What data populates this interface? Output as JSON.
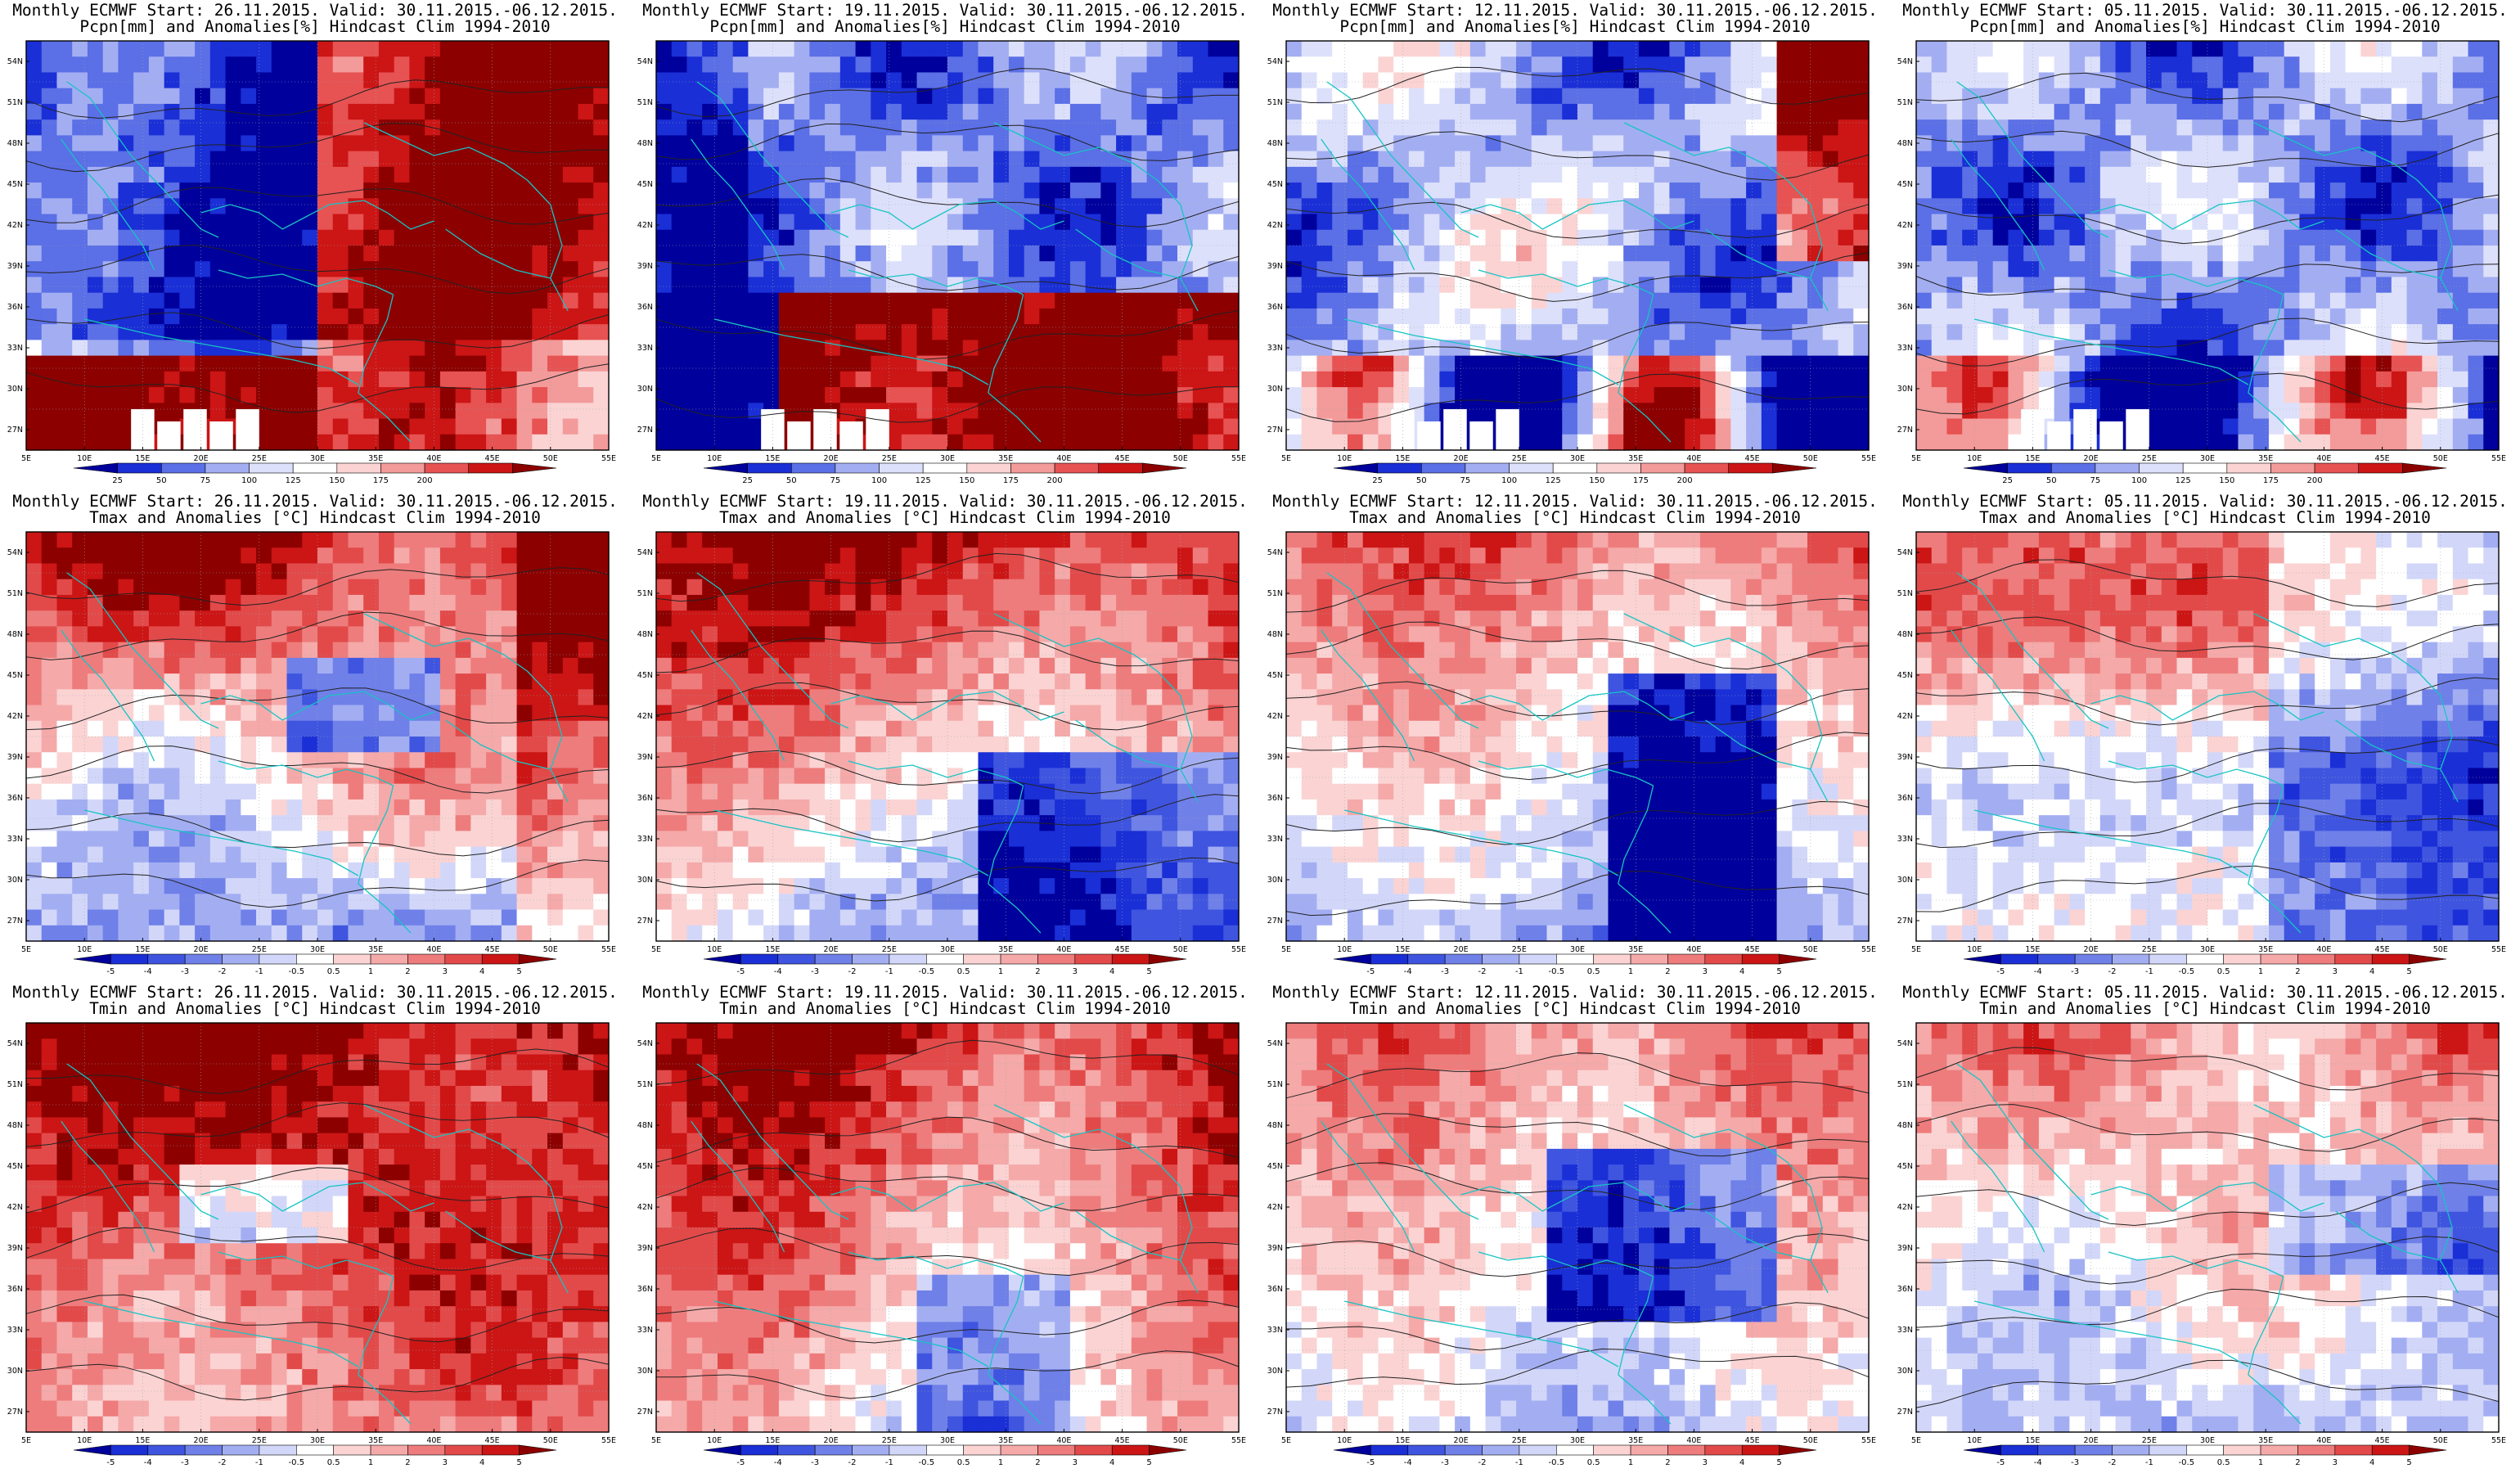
{
  "figure": {
    "lat_labels": [
      "54N",
      "51N",
      "48N",
      "45N",
      "42N",
      "39N",
      "36N",
      "33N",
      "30N",
      "27N"
    ],
    "lon_labels": [
      "5E",
      "10E",
      "15E",
      "20E",
      "25E",
      "30E",
      "35E",
      "40E",
      "45E",
      "50E",
      "55E"
    ],
    "runs": [
      {
        "title1": "Monthly ECMWF Start: 26.11.2015. Valid: 30.11.2015.-06.12.2015."
      },
      {
        "title1": "Monthly ECMWF Start: 19.11.2015. Valid: 30.11.2015.-06.12.2015."
      },
      {
        "title1": "Monthly ECMWF Start: 12.11.2015. Valid: 30.11.2015.-06.12.2015."
      },
      {
        "title1": "Monthly ECMWF Start: 05.11.2015. Valid: 30.11.2015.-06.12.2015."
      }
    ],
    "variables": [
      {
        "title2": "Pcpn[mm] and Anomalies[%] Hindcast Clim 1994-2010",
        "colorbar_labels": [
          "25",
          "50",
          "75",
          "100",
          "125",
          "150",
          "175",
          "200"
        ],
        "colorbar_colors": [
          "#00009c",
          "#1a2fd6",
          "#5b6fe6",
          "#a3aef2",
          "#dde0fb",
          "#ffffff",
          "#fbd3d3",
          "#f39a9a",
          "#e75252",
          "#cc1515",
          "#8c0000"
        ]
      },
      {
        "title2": "Tmax and Anomalies [°C] Hindcast Clim 1994-2010",
        "colorbar_labels": [
          "-5",
          "-4",
          "-3",
          "-2",
          "-1",
          "-0.5",
          "0.5",
          "1",
          "2",
          "3",
          "4",
          "5"
        ],
        "colorbar_colors": [
          "#00009c",
          "#1a2fd6",
          "#3f55e0",
          "#6f80e8",
          "#a3aef2",
          "#d2d7f9",
          "#ffffff",
          "#fbd3d3",
          "#f5a9a9",
          "#ee7c7c",
          "#e24a4a",
          "#cc1515",
          "#8c0000"
        ]
      },
      {
        "title2": "Tmin and Anomalies [°C] Hindcast Clim 1994-2010",
        "colorbar_labels": [
          "-5",
          "-4",
          "-3",
          "-2",
          "-1",
          "-0.5",
          "0.5",
          "1",
          "2",
          "3",
          "4",
          "5"
        ],
        "colorbar_colors": [
          "#00009c",
          "#1a2fd6",
          "#3f55e0",
          "#6f80e8",
          "#a3aef2",
          "#d2d7f9",
          "#ffffff",
          "#fbd3d3",
          "#f5a9a9",
          "#ee7c7c",
          "#e24a4a",
          "#cc1515",
          "#8c0000"
        ]
      }
    ],
    "panel_tone": [
      [
        "precip_wet_south_dry_west",
        "precip_dry_north_wet_south",
        "precip_mixed",
        "precip_mostly_dry"
      ],
      [
        "tmax_warm",
        "tmax_warm_north",
        "tmax_mild",
        "tmax_mild_cool_east"
      ],
      [
        "tmin_warm",
        "tmin_warm_north",
        "tmin_mild_cool_east",
        "tmin_mild"
      ]
    ]
  }
}
